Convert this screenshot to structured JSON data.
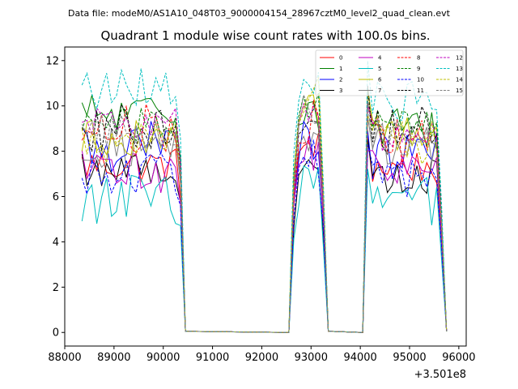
{
  "suptitle": "Data file: modeM0/AS1A10_048T03_9000004154_28967cztM0_level2_quad_clean.evt",
  "chart_data": {
    "type": "line",
    "title": "Quadrant 1 module wise count rates with 100.0s bins.",
    "xlabel": "",
    "ylabel": "",
    "offset_text": "+3.501e8",
    "xlim": [
      88000,
      96150
    ],
    "ylim": [
      -0.6,
      12.6
    ],
    "x_ticks": [
      88000,
      89000,
      90000,
      91000,
      92000,
      93000,
      94000,
      95000,
      96000
    ],
    "x_tick_labels": [
      "88000",
      "89000",
      "90000",
      "91000",
      "92000",
      "93000",
      "94000",
      "95000",
      "96000"
    ],
    "y_ticks": [
      0,
      2,
      4,
      6,
      8,
      10,
      12
    ],
    "y_tick_labels": [
      "0",
      "2",
      "4",
      "6",
      "8",
      "10",
      "12"
    ],
    "legend_position": "upper right",
    "gaps": [
      {
        "from": 90550,
        "to": 92550
      },
      {
        "from": 93450,
        "to": 94050
      }
    ],
    "segments": [
      {
        "x_start": 88350,
        "step": 100,
        "n": 21,
        "drop": 90450
      },
      {
        "x_start": 92650,
        "step": 100,
        "n": 7,
        "drop": 93350,
        "rise_from": 92550
      },
      {
        "x_start": 94150,
        "step": 100,
        "n": 16,
        "drop": 95750,
        "rise_from": 94050
      }
    ],
    "series": [
      {
        "name": "0",
        "color": "#ff0000",
        "dash": "solid",
        "base": [
          7.4,
          8.3,
          7.3
        ]
      },
      {
        "name": "1",
        "color": "#008000",
        "dash": "solid",
        "base": [
          9.6,
          9.9,
          9.0
        ]
      },
      {
        "name": "2",
        "color": "#0000ff",
        "dash": "solid",
        "base": [
          8.2,
          8.5,
          7.8
        ]
      },
      {
        "name": "3",
        "color": "#000000",
        "dash": "solid",
        "base": [
          7.2,
          7.2,
          6.9
        ]
      },
      {
        "name": "4",
        "color": "#bf00bf",
        "dash": "solid",
        "base": [
          7.1,
          8.0,
          7.1
        ]
      },
      {
        "name": "5",
        "color": "#00bfbf",
        "dash": "solid",
        "base": [
          5.9,
          6.3,
          5.8
        ]
      },
      {
        "name": "6",
        "color": "#bfbf00",
        "dash": "solid",
        "base": [
          8.6,
          9.7,
          8.7
        ]
      },
      {
        "name": "7",
        "color": "#808080",
        "dash": "solid",
        "base": [
          8.2,
          8.9,
          8.3
        ]
      },
      {
        "name": "8",
        "color": "#ff0000",
        "dash": "dashed",
        "base": [
          9.0,
          9.3,
          8.4
        ]
      },
      {
        "name": "9",
        "color": "#008000",
        "dash": "dashed",
        "base": [
          9.2,
          10.0,
          9.2
        ]
      },
      {
        "name": "10",
        "color": "#0000ff",
        "dash": "dashed",
        "base": [
          7.0,
          7.8,
          6.8
        ]
      },
      {
        "name": "11",
        "color": "#000000",
        "dash": "dashed",
        "base": [
          9.1,
          9.7,
          8.9
        ]
      },
      {
        "name": "12",
        "color": "#bf00bf",
        "dash": "dashed",
        "base": [
          9.2,
          9.5,
          8.8
        ]
      },
      {
        "name": "13",
        "color": "#00bfbf",
        "dash": "dashed",
        "base": [
          10.7,
          11.0,
          10.2
        ]
      },
      {
        "name": "14",
        "color": "#bfbf00",
        "dash": "dashed",
        "base": [
          8.6,
          10.2,
          8.5
        ]
      },
      {
        "name": "15",
        "color": "#808080",
        "dash": "dashed",
        "base": [
          8.8,
          9.7,
          8.6
        ]
      }
    ]
  }
}
